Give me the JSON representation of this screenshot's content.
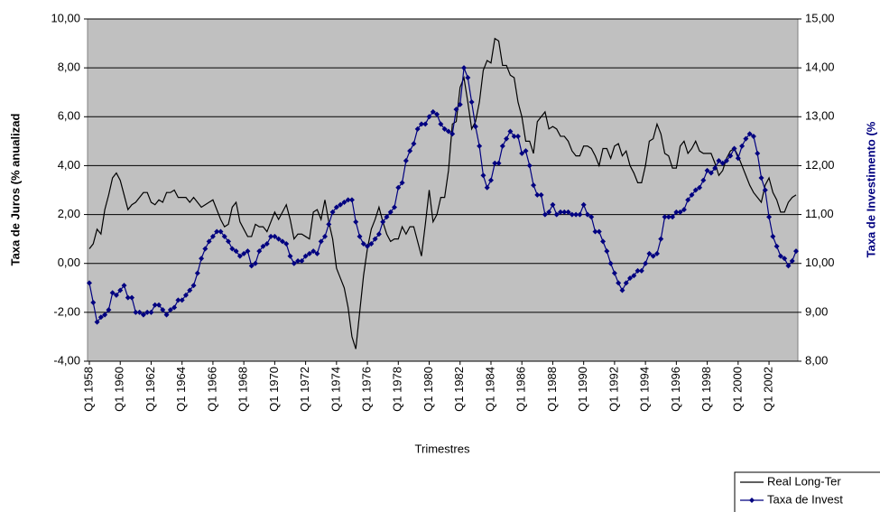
{
  "chart_data": {
    "type": "line",
    "x_label": "Trimestres",
    "y_label": "Taxa de Juros (% anualizad",
    "y2_label": "Taxa de Investimento (%",
    "categories": [
      "Q1 1958",
      null,
      null,
      null,
      null,
      null,
      null,
      null,
      "Q1 1960",
      null,
      null,
      null,
      null,
      null,
      null,
      null,
      "Q1 1962",
      null,
      null,
      null,
      null,
      null,
      null,
      null,
      "Q1 1964",
      null,
      null,
      null,
      null,
      null,
      null,
      null,
      "Q1 1966",
      null,
      null,
      null,
      null,
      null,
      null,
      null,
      "Q1 1968",
      null,
      null,
      null,
      null,
      null,
      null,
      null,
      "Q1 1970",
      null,
      null,
      null,
      null,
      null,
      null,
      null,
      "Q1 1972",
      null,
      null,
      null,
      null,
      null,
      null,
      null,
      "Q1 1974",
      null,
      null,
      null,
      null,
      null,
      null,
      null,
      "Q1 1976",
      null,
      null,
      null,
      null,
      null,
      null,
      null,
      "Q1 1978",
      null,
      null,
      null,
      null,
      null,
      null,
      null,
      "Q1 1980",
      null,
      null,
      null,
      null,
      null,
      null,
      null,
      "Q1 1982",
      null,
      null,
      null,
      null,
      null,
      null,
      null,
      "Q1 1984",
      null,
      null,
      null,
      null,
      null,
      null,
      null,
      "Q1 1986",
      null,
      null,
      null,
      null,
      null,
      null,
      null,
      "Q1 1988",
      null,
      null,
      null,
      null,
      null,
      null,
      null,
      "Q1 1990",
      null,
      null,
      null,
      null,
      null,
      null,
      null,
      "Q1 1992",
      null,
      null,
      null,
      null,
      null,
      null,
      null,
      "Q1 1994",
      null,
      null,
      null,
      null,
      null,
      null,
      null,
      "Q1 1996",
      null,
      null,
      null,
      null,
      null,
      null,
      null,
      "Q1 1998",
      null,
      null,
      null,
      null,
      null,
      null,
      null,
      "Q1 2000",
      null,
      null,
      null,
      null,
      null,
      null,
      null,
      "Q1 2002",
      null,
      null,
      null,
      null,
      null,
      null,
      null
    ],
    "series": [
      {
        "name": "Real Long-Ter",
        "color": "#000000",
        "axis": "y",
        "marker": false,
        "values": [
          0.6,
          0.8,
          1.4,
          1.2,
          2.2,
          2.8,
          3.5,
          3.7,
          3.4,
          2.8,
          2.2,
          2.4,
          2.5,
          2.7,
          2.9,
          2.9,
          2.5,
          2.4,
          2.6,
          2.5,
          2.9,
          2.9,
          3.0,
          2.7,
          2.7,
          2.7,
          2.5,
          2.7,
          2.5,
          2.3,
          2.4,
          2.5,
          2.6,
          2.2,
          1.8,
          1.5,
          1.6,
          2.3,
          2.5,
          1.7,
          1.4,
          1.1,
          1.1,
          1.6,
          1.5,
          1.5,
          1.3,
          1.7,
          2.1,
          1.8,
          2.1,
          2.4,
          1.8,
          1.0,
          1.2,
          1.2,
          1.1,
          1.0,
          2.1,
          2.2,
          1.8,
          2.6,
          1.7,
          1.0,
          -0.2,
          -0.6,
          -1.0,
          -1.8,
          -3.0,
          -3.5,
          -2.0,
          -0.5,
          0.6,
          1.4,
          1.8,
          2.3,
          1.7,
          1.2,
          0.9,
          1.0,
          1.0,
          1.5,
          1.2,
          1.5,
          1.5,
          0.9,
          0.3,
          1.6,
          3.0,
          1.7,
          2.0,
          2.7,
          2.7,
          3.8,
          5.7,
          5.8,
          7.2,
          7.6,
          6.6,
          5.5,
          5.8,
          6.6,
          7.9,
          8.3,
          8.2,
          9.2,
          9.1,
          8.1,
          8.1,
          7.7,
          7.6,
          6.6,
          6.0,
          5.0,
          5.0,
          4.5,
          5.8,
          6.0,
          6.2,
          5.5,
          5.6,
          5.5,
          5.2,
          5.2,
          5.0,
          4.6,
          4.4,
          4.4,
          4.8,
          4.8,
          4.7,
          4.4,
          4.0,
          4.7,
          4.7,
          4.3,
          4.8,
          4.9,
          4.4,
          4.6,
          4.0,
          3.7,
          3.3,
          3.3,
          4.0,
          5.0,
          5.1,
          5.7,
          5.3,
          4.5,
          4.4,
          3.9,
          3.9,
          4.8,
          5.0,
          4.5,
          4.7,
          5.0,
          4.6,
          4.5,
          4.5,
          4.5,
          4.1,
          3.6,
          3.8,
          4.3,
          4.6,
          4.7,
          4.4,
          4.0,
          3.6,
          3.2,
          2.9,
          2.7,
          2.5,
          3.2,
          3.5,
          2.9,
          2.6,
          2.1,
          2.1,
          2.5,
          2.7,
          2.8
        ]
      },
      {
        "name": "Taxa de Invest",
        "color": "#000080",
        "axis": "y2",
        "marker": true,
        "values": [
          9.6,
          9.2,
          8.8,
          8.9,
          8.95,
          9.05,
          9.4,
          9.35,
          9.45,
          9.55,
          9.3,
          9.3,
          9.0,
          9.0,
          8.95,
          9.0,
          9.0,
          9.15,
          9.15,
          9.05,
          8.95,
          9.05,
          9.1,
          9.25,
          9.25,
          9.35,
          9.45,
          9.55,
          9.8,
          10.1,
          10.3,
          10.45,
          10.55,
          10.65,
          10.65,
          10.55,
          10.45,
          10.3,
          10.25,
          10.15,
          10.2,
          10.25,
          9.95,
          10.0,
          10.25,
          10.35,
          10.4,
          10.55,
          10.55,
          10.5,
          10.45,
          10.4,
          10.15,
          10.0,
          10.05,
          10.05,
          10.15,
          10.2,
          10.25,
          10.2,
          10.45,
          10.55,
          10.8,
          11.05,
          11.15,
          11.2,
          11.25,
          11.3,
          11.3,
          10.85,
          10.55,
          10.4,
          10.35,
          10.4,
          10.5,
          10.6,
          10.85,
          10.95,
          11.05,
          11.15,
          11.55,
          11.65,
          12.1,
          12.3,
          12.45,
          12.75,
          12.85,
          12.85,
          13.0,
          13.1,
          13.05,
          12.85,
          12.75,
          12.7,
          12.65,
          13.15,
          13.25,
          14.0,
          13.8,
          13.3,
          12.8,
          12.4,
          11.8,
          11.55,
          11.7,
          12.05,
          12.05,
          12.4,
          12.55,
          12.7,
          12.6,
          12.6,
          12.25,
          12.3,
          12.0,
          11.6,
          11.4,
          11.4,
          11.0,
          11.05,
          11.2,
          11.0,
          11.05,
          11.05,
          11.05,
          11.0,
          11.0,
          11.0,
          11.2,
          11.0,
          10.95,
          10.65,
          10.65,
          10.45,
          10.25,
          10.0,
          9.8,
          9.6,
          9.45,
          9.6,
          9.7,
          9.75,
          9.85,
          9.85,
          10.0,
          10.2,
          10.15,
          10.2,
          10.5,
          10.95,
          10.95,
          10.95,
          11.05,
          11.05,
          11.1,
          11.3,
          11.4,
          11.5,
          11.55,
          11.7,
          11.9,
          11.85,
          11.95,
          12.1,
          12.05,
          12.1,
          12.2,
          12.35,
          12.15,
          12.4,
          12.55,
          12.65,
          12.6,
          12.25,
          11.75,
          11.5,
          10.95,
          10.55,
          10.35,
          10.15,
          10.1,
          9.95,
          10.05,
          10.25
        ]
      }
    ],
    "ylim": [
      -4,
      10
    ],
    "yticks": [
      {
        "value": -4,
        "label": "-4,00"
      },
      {
        "value": -2,
        "label": "-2,00"
      },
      {
        "value": 0,
        "label": "0,00"
      },
      {
        "value": 2,
        "label": "2,00"
      },
      {
        "value": 4,
        "label": "4,00"
      },
      {
        "value": 6,
        "label": "6,00"
      },
      {
        "value": 8,
        "label": "8,00"
      },
      {
        "value": 10,
        "label": "10,00"
      }
    ],
    "y2lim": [
      8,
      15
    ],
    "y2ticks": [
      {
        "value": 8,
        "label": "8,00"
      },
      {
        "value": 9,
        "label": "9,00"
      },
      {
        "value": 10,
        "label": "10,00"
      },
      {
        "value": 11,
        "label": "11,00"
      },
      {
        "value": 12,
        "label": "12,00"
      },
      {
        "value": 13,
        "label": "13,00"
      },
      {
        "value": 14,
        "label": "14,00"
      },
      {
        "value": 15,
        "label": "15,00"
      }
    ],
    "grid": true,
    "plot_background": "#c0c0c0",
    "legend": "bottom-right"
  }
}
